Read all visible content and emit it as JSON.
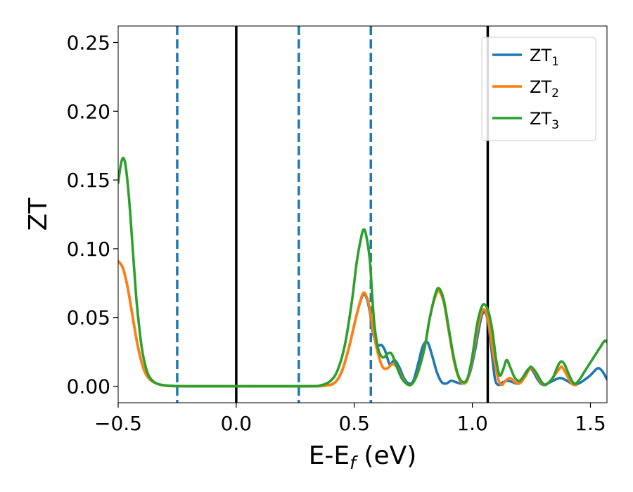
{
  "chart_data": {
    "type": "line",
    "xlabel": "E-E",
    "xlabel_sub": "f",
    "xlabel_unit": " (eV)",
    "ylabel": "ZT",
    "xlim": [
      -0.5,
      1.57
    ],
    "ylim": [
      -0.012,
      0.262
    ],
    "x_ticks": [
      -0.5,
      0.0,
      0.5,
      1.0,
      1.5
    ],
    "x_tick_labels": [
      "−0.5",
      "0.0",
      "0.5",
      "1.0",
      "1.5"
    ],
    "y_ticks": [
      0.0,
      0.05,
      0.1,
      0.15,
      0.2,
      0.25
    ],
    "y_tick_labels": [
      "0.00",
      "0.05",
      "0.10",
      "0.15",
      "0.20",
      "0.25"
    ],
    "grid": false,
    "legend_position": "top-right",
    "vlines": [
      {
        "x": -0.25,
        "style": "dashed",
        "color": "#1f77b4"
      },
      {
        "x": 0.0,
        "style": "solid",
        "color": "#000000"
      },
      {
        "x": 0.265,
        "style": "dashed",
        "color": "#1f77b4"
      },
      {
        "x": 0.57,
        "style": "dashed",
        "color": "#1f77b4"
      },
      {
        "x": 1.065,
        "style": "solid",
        "color": "#000000"
      }
    ],
    "series": [
      {
        "name": "ZT",
        "sub": "1",
        "color": "#1f77b4",
        "points": [
          [
            -0.5,
            0.091
          ],
          [
            -0.48,
            0.086
          ],
          [
            -0.46,
            0.072
          ],
          [
            -0.44,
            0.052
          ],
          [
            -0.42,
            0.032
          ],
          [
            -0.4,
            0.017
          ],
          [
            -0.38,
            0.008
          ],
          [
            -0.35,
            0.003
          ],
          [
            -0.3,
            0.0005
          ],
          [
            -0.2,
            0.0
          ],
          [
            0.0,
            0.0
          ],
          [
            0.3,
            0.0
          ],
          [
            0.38,
            0.0005
          ],
          [
            0.42,
            0.003
          ],
          [
            0.45,
            0.012
          ],
          [
            0.48,
            0.03
          ],
          [
            0.51,
            0.052
          ],
          [
            0.535,
            0.066
          ],
          [
            0.55,
            0.065
          ],
          [
            0.565,
            0.055
          ],
          [
            0.58,
            0.038
          ],
          [
            0.6,
            0.03
          ],
          [
            0.615,
            0.03
          ],
          [
            0.63,
            0.026
          ],
          [
            0.65,
            0.016
          ],
          [
            0.67,
            0.019
          ],
          [
            0.69,
            0.014
          ],
          [
            0.71,
            0.006
          ],
          [
            0.73,
            0.002
          ],
          [
            0.75,
            0.004
          ],
          [
            0.77,
            0.016
          ],
          [
            0.79,
            0.029
          ],
          [
            0.81,
            0.032
          ],
          [
            0.83,
            0.022
          ],
          [
            0.85,
            0.01
          ],
          [
            0.87,
            0.003
          ],
          [
            0.89,
            0.002
          ],
          [
            0.91,
            0.004
          ],
          [
            0.93,
            0.003
          ],
          [
            0.95,
            0.002
          ],
          [
            0.97,
            0.003
          ],
          [
            0.99,
            0.01
          ],
          [
            1.01,
            0.025
          ],
          [
            1.035,
            0.048
          ],
          [
            1.05,
            0.054
          ],
          [
            1.065,
            0.048
          ],
          [
            1.08,
            0.028
          ],
          [
            1.095,
            0.006
          ],
          [
            1.11,
            0.001
          ],
          [
            1.13,
            0.003
          ],
          [
            1.15,
            0.004
          ],
          [
            1.17,
            0.003
          ],
          [
            1.19,
            0.002
          ],
          [
            1.21,
            0.005
          ],
          [
            1.23,
            0.011
          ],
          [
            1.245,
            0.013
          ],
          [
            1.26,
            0.01
          ],
          [
            1.28,
            0.004
          ],
          [
            1.3,
            0.001
          ],
          [
            1.33,
            0.003
          ],
          [
            1.37,
            0.006
          ],
          [
            1.4,
            0.004
          ],
          [
            1.43,
            0.001
          ],
          [
            1.45,
            0.002
          ],
          [
            1.47,
            0.004
          ],
          [
            1.5,
            0.008
          ],
          [
            1.53,
            0.013
          ],
          [
            1.55,
            0.011
          ],
          [
            1.57,
            0.005
          ]
        ]
      },
      {
        "name": "ZT",
        "sub": "2",
        "color": "#ff7f0e",
        "points": [
          [
            -0.5,
            0.091
          ],
          [
            -0.48,
            0.086
          ],
          [
            -0.46,
            0.072
          ],
          [
            -0.44,
            0.052
          ],
          [
            -0.42,
            0.032
          ],
          [
            -0.4,
            0.017
          ],
          [
            -0.38,
            0.008
          ],
          [
            -0.35,
            0.003
          ],
          [
            -0.3,
            0.0005
          ],
          [
            -0.2,
            0.0
          ],
          [
            0.0,
            0.0
          ],
          [
            0.3,
            0.0
          ],
          [
            0.38,
            0.0005
          ],
          [
            0.42,
            0.003
          ],
          [
            0.45,
            0.012
          ],
          [
            0.48,
            0.03
          ],
          [
            0.51,
            0.052
          ],
          [
            0.535,
            0.067
          ],
          [
            0.55,
            0.066
          ],
          [
            0.565,
            0.057
          ],
          [
            0.58,
            0.04
          ],
          [
            0.6,
            0.024
          ],
          [
            0.62,
            0.014
          ],
          [
            0.64,
            0.013
          ],
          [
            0.66,
            0.016
          ],
          [
            0.68,
            0.014
          ],
          [
            0.7,
            0.007
          ],
          [
            0.72,
            0.002
          ],
          [
            0.74,
            0.001
          ],
          [
            0.76,
            0.006
          ],
          [
            0.78,
            0.016
          ],
          [
            0.8,
            0.03
          ],
          [
            0.82,
            0.05
          ],
          [
            0.845,
            0.066
          ],
          [
            0.86,
            0.069
          ],
          [
            0.88,
            0.06
          ],
          [
            0.9,
            0.04
          ],
          [
            0.92,
            0.02
          ],
          [
            0.94,
            0.007
          ],
          [
            0.96,
            0.002
          ],
          [
            0.98,
            0.005
          ],
          [
            1.0,
            0.02
          ],
          [
            1.02,
            0.04
          ],
          [
            1.04,
            0.054
          ],
          [
            1.055,
            0.055
          ],
          [
            1.07,
            0.045
          ],
          [
            1.09,
            0.022
          ],
          [
            1.11,
            0.005
          ],
          [
            1.125,
            0.001
          ],
          [
            1.14,
            0.004
          ],
          [
            1.16,
            0.006
          ],
          [
            1.18,
            0.003
          ],
          [
            1.2,
            0.002
          ],
          [
            1.22,
            0.006
          ],
          [
            1.24,
            0.012
          ],
          [
            1.25,
            0.013
          ],
          [
            1.27,
            0.009
          ],
          [
            1.29,
            0.003
          ],
          [
            1.31,
            0.001
          ],
          [
            1.34,
            0.006
          ],
          [
            1.37,
            0.013
          ],
          [
            1.38,
            0.014
          ],
          [
            1.4,
            0.008
          ],
          [
            1.42,
            0.002
          ],
          [
            1.44,
            0.001
          ]
        ]
      },
      {
        "name": "ZT",
        "sub": "3",
        "color": "#2ca02c",
        "points": [
          [
            -0.5,
            0.148
          ],
          [
            -0.49,
            0.16
          ],
          [
            -0.48,
            0.166
          ],
          [
            -0.47,
            0.162
          ],
          [
            -0.46,
            0.148
          ],
          [
            -0.45,
            0.128
          ],
          [
            -0.44,
            0.104
          ],
          [
            -0.43,
            0.08
          ],
          [
            -0.42,
            0.058
          ],
          [
            -0.4,
            0.028
          ],
          [
            -0.38,
            0.012
          ],
          [
            -0.36,
            0.005
          ],
          [
            -0.33,
            0.0015
          ],
          [
            -0.28,
            0.0003
          ],
          [
            -0.2,
            0.0
          ],
          [
            0.0,
            0.0
          ],
          [
            0.3,
            0.0
          ],
          [
            0.36,
            0.0008
          ],
          [
            0.4,
            0.004
          ],
          [
            0.43,
            0.012
          ],
          [
            0.46,
            0.03
          ],
          [
            0.49,
            0.062
          ],
          [
            0.51,
            0.09
          ],
          [
            0.53,
            0.109
          ],
          [
            0.54,
            0.114
          ],
          [
            0.55,
            0.11
          ],
          [
            0.565,
            0.093
          ],
          [
            0.575,
            0.068
          ],
          [
            0.585,
            0.045
          ],
          [
            0.6,
            0.028
          ],
          [
            0.62,
            0.021
          ],
          [
            0.645,
            0.024
          ],
          [
            0.66,
            0.023
          ],
          [
            0.68,
            0.014
          ],
          [
            0.7,
            0.006
          ],
          [
            0.72,
            0.002
          ],
          [
            0.74,
            0.001
          ],
          [
            0.76,
            0.006
          ],
          [
            0.78,
            0.016
          ],
          [
            0.8,
            0.03
          ],
          [
            0.82,
            0.05
          ],
          [
            0.845,
            0.068
          ],
          [
            0.86,
            0.071
          ],
          [
            0.88,
            0.062
          ],
          [
            0.9,
            0.042
          ],
          [
            0.92,
            0.022
          ],
          [
            0.94,
            0.008
          ],
          [
            0.96,
            0.003
          ],
          [
            0.98,
            0.006
          ],
          [
            1.0,
            0.022
          ],
          [
            1.02,
            0.045
          ],
          [
            1.04,
            0.058
          ],
          [
            1.055,
            0.059
          ],
          [
            1.07,
            0.053
          ],
          [
            1.085,
            0.04
          ],
          [
            1.1,
            0.02
          ],
          [
            1.115,
            0.008
          ],
          [
            1.13,
            0.012
          ],
          [
            1.145,
            0.019
          ],
          [
            1.16,
            0.014
          ],
          [
            1.18,
            0.006
          ],
          [
            1.2,
            0.004
          ],
          [
            1.22,
            0.008
          ],
          [
            1.24,
            0.013
          ],
          [
            1.25,
            0.014
          ],
          [
            1.27,
            0.01
          ],
          [
            1.29,
            0.004
          ],
          [
            1.31,
            0.001
          ],
          [
            1.34,
            0.006
          ],
          [
            1.36,
            0.014
          ],
          [
            1.375,
            0.018
          ],
          [
            1.39,
            0.016
          ],
          [
            1.41,
            0.008
          ],
          [
            1.43,
            0.002
          ],
          [
            1.45,
            0.004
          ],
          [
            1.48,
            0.012
          ],
          [
            1.51,
            0.02
          ],
          [
            1.54,
            0.028
          ],
          [
            1.56,
            0.033
          ],
          [
            1.57,
            0.032
          ]
        ]
      }
    ]
  }
}
